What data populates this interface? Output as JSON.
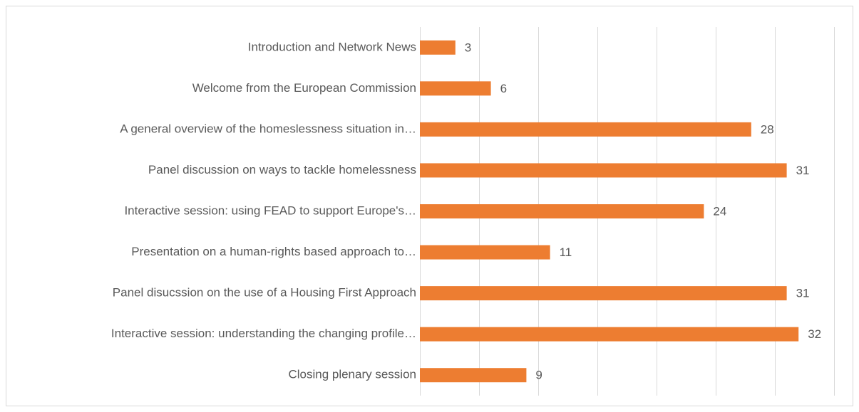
{
  "chart_data": {
    "type": "bar",
    "orientation": "horizontal",
    "categories": [
      "Introduction and Network News",
      "Welcome from the European Commission",
      "A general overview of the homeslessness situation in…",
      "Panel discussion on ways to tackle homelessness",
      "Interactive session: using FEAD to support Europe's…",
      "Presentation on a human-rights based approach to…",
      "Panel disucssion on the use of a Housing First Approach",
      "Interactive session: understanding the changing profile…",
      "Closing plenary session"
    ],
    "values": [
      3,
      6,
      28,
      31,
      24,
      11,
      31,
      32,
      9
    ],
    "color": "#ed7d31",
    "xlim": [
      0,
      35
    ],
    "xticks": [
      0,
      5,
      10,
      15,
      20,
      25,
      30,
      35
    ],
    "grid": true
  }
}
